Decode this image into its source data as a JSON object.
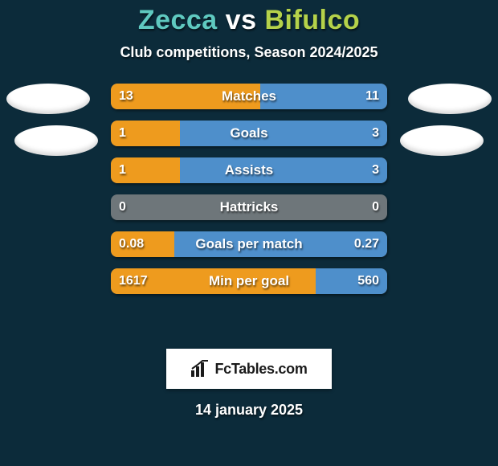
{
  "colors": {
    "card_bg": "#0c2b3a",
    "player_left": "#5fc9c0",
    "player_right": "#b5d24a",
    "vs": "#ffffff",
    "bar_left": "#ee9b1e",
    "bar_right": "#4e8fcb",
    "bar_neutral": "#6e767a"
  },
  "title": {
    "left_name": "Zecca",
    "vs": "vs",
    "right_name": "Bifulco",
    "fontsize": 34
  },
  "subtitle": "Club competitions, Season 2024/2025",
  "stats": [
    {
      "label": "Matches",
      "left_val": "13",
      "right_val": "11",
      "left_pct": 54,
      "right_pct": 46
    },
    {
      "label": "Goals",
      "left_val": "1",
      "right_val": "3",
      "left_pct": 25,
      "right_pct": 75
    },
    {
      "label": "Assists",
      "left_val": "1",
      "right_val": "3",
      "left_pct": 25,
      "right_pct": 75
    },
    {
      "label": "Hattricks",
      "left_val": "0",
      "right_val": "0",
      "left_pct": 0,
      "right_pct": 0
    },
    {
      "label": "Goals per match",
      "left_val": "0.08",
      "right_val": "0.27",
      "left_pct": 23,
      "right_pct": 77
    },
    {
      "label": "Min per goal",
      "left_val": "1617",
      "right_val": "560",
      "left_pct": 74,
      "right_pct": 26
    }
  ],
  "brand": "FcTables.com",
  "date": "14 january 2025"
}
